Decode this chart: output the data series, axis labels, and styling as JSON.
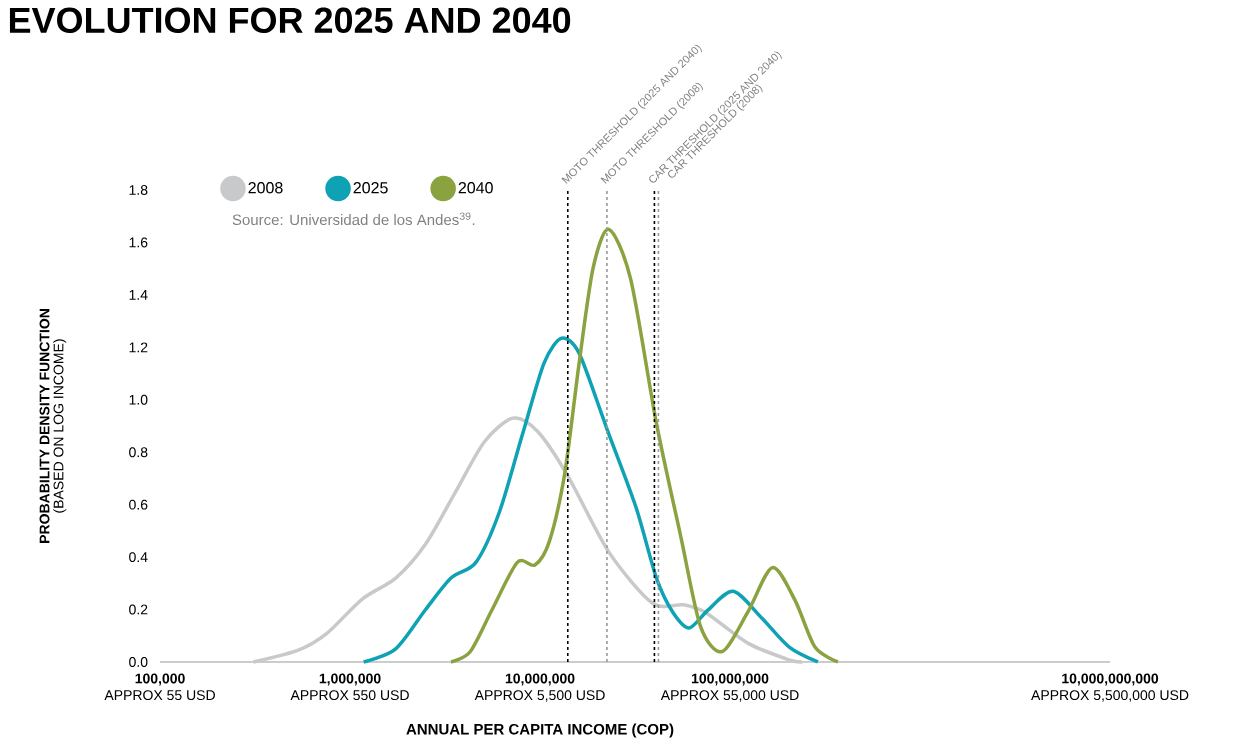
{
  "chart_data": {
    "type": "line",
    "title": "EVOLUTION FOR 2025 AND 2040",
    "xlabel": "ANNUAL PER CAPITA INCOME (COP)",
    "ylabel": "**PROBABILITY DENSITY FUNCTION**\n(BASED ON LOG INCOME)",
    "log": "x",
    "xlim": [
      100000,
      10000000000
    ],
    "xticks": [
      {
        "value": 100000,
        "label": "100,000"
      },
      {
        "value": 1000000,
        "label": "1,000,000"
      },
      {
        "value": 10000000,
        "label": "10,000,000"
      },
      {
        "value": 100000000,
        "label": "100,000,000"
      },
      {
        "value": 10000000000,
        "label": "10,000,000,000"
      }
    ],
    "ylim": [
      0,
      1.8
    ],
    "yticks": [
      {
        "value": 0,
        "label": "0.0"
      },
      {
        "value": 0.2,
        "label": "0.2"
      },
      {
        "value": 0.4,
        "label": "0.4"
      },
      {
        "value": 0.6,
        "label": "0.6"
      },
      {
        "value": 0.8,
        "label": "0.8"
      },
      {
        "value": 1.0,
        "label": "1.0"
      },
      {
        "value": 1.2,
        "label": "1.2"
      },
      {
        "value": 1.4,
        "label": "1.4"
      },
      {
        "value": 1.6,
        "label": "1.6"
      },
      {
        "value": 1.8,
        "label": "1.8"
      }
    ],
    "legend": "top left",
    "annotations": [
      "Source: Universidad de los Andes$^{39}$.",
      "APPROX 55 USD",
      "APPROX 550 USD",
      "APPROX 5,500 USD",
      "APPROX 55,000 USD",
      "APPROX 5,500,000 USD"
    ],
    "ref_lines": [
      {
        "axis": "x",
        "value": 14000000,
        "label": "MOTO THRESHOLD (2025 AND 2040)",
        "color": "#000000",
        "line_style": "dashed"
      },
      {
        "axis": "x",
        "value": 22500000,
        "label": "MOTO THRESHOLD (2008)",
        "color": "#999999",
        "line_style": "dashed"
      },
      {
        "axis": "x",
        "value": 40000000,
        "label": "CAR THRESHOLD (2025 AND 2040)",
        "color": "#000000",
        "line_style": "dashed"
      },
      {
        "axis": "x",
        "value": 42000000,
        "label": "CAR THRESHOLD (2008)",
        "color": "#999999",
        "line_style": "dashed"
      }
    ],
    "series": [
      {
        "name": "2008",
        "color": "#c8c9cb",
        "x": [
          310000,
          530000,
          750000,
          1160000,
          1740000,
          2500000,
          3600000,
          5100000,
          7200000,
          9700000,
          14000000,
          23000000,
          39000000,
          57000000,
          75000000,
          124000000,
          205000000,
          240000000
        ],
        "values": [
          0,
          0.044,
          0.107,
          0.24,
          0.32,
          0.45,
          0.65,
          0.84,
          0.93,
          0.88,
          0.71,
          0.42,
          0.225,
          0.218,
          0.187,
          0.072,
          0.008,
          0
        ]
      },
      {
        "name": "2025",
        "color": "#0fa1b4",
        "x": [
          1180000,
          1740000,
          2500000,
          3400000,
          4600000,
          6100000,
          8100000,
          10500000,
          13000000,
          16000000,
          21000000,
          23000000,
          32000000,
          41000000,
          50000000,
          61000000,
          77000000,
          104000000,
          146000000,
          205000000,
          290000000
        ],
        "values": [
          0,
          0.05,
          0.2,
          0.32,
          0.38,
          0.57,
          0.87,
          1.14,
          1.235,
          1.18,
          0.95,
          0.87,
          0.59,
          0.32,
          0.19,
          0.13,
          0.2,
          0.27,
          0.17,
          0.057,
          0
        ]
      },
      {
        "name": "2040",
        "color": "#8aa23f",
        "x": [
          3400000,
          4300000,
          5600000,
          7600000,
          9400000,
          11200000,
          13500000,
          16000000,
          19000000,
          23000000,
          30000000,
          41000000,
          55000000,
          70000000,
          91000000,
          124000000,
          167000000,
          220000000,
          280000000,
          370000000
        ],
        "values": [
          0,
          0.04,
          0.2,
          0.38,
          0.37,
          0.46,
          0.72,
          1.13,
          1.5,
          1.65,
          1.46,
          0.91,
          0.48,
          0.135,
          0.04,
          0.19,
          0.36,
          0.235,
          0.057,
          0
        ]
      }
    ]
  }
}
